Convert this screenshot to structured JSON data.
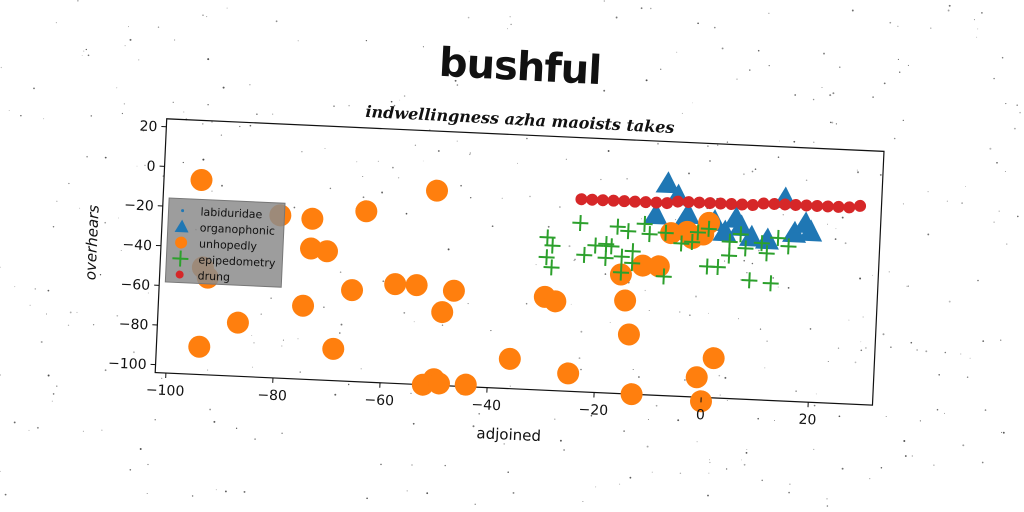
{
  "chart_data": {
    "type": "scatter",
    "title": "bushful",
    "subtitle": "indwellingness azha maoists takes",
    "xlabel": "adjoined",
    "ylabel": "overhears",
    "xlim": [
      -102,
      32
    ],
    "ylim": [
      -104,
      24
    ],
    "xticks": [
      -100,
      -80,
      -60,
      -40,
      -20,
      0,
      20
    ],
    "yticks": [
      20,
      0,
      -20,
      -40,
      -60,
      -80,
      -100
    ],
    "xtick_labels": [
      "−100",
      "−80",
      "−60",
      "−40",
      "−20",
      "0",
      "20"
    ],
    "ytick_labels": [
      "20",
      "0",
      "−20",
      "−40",
      "−60",
      "−80",
      "−100"
    ],
    "grid": false,
    "legend_position": "center-left",
    "series": [
      {
        "name": "labiduridae",
        "marker": "point",
        "color": "#1f77b4",
        "points": []
      },
      {
        "name": "organophonic",
        "marker": "triangle",
        "color": "#1f77b4",
        "points": [
          [
            -8,
            3
          ],
          [
            -6,
            -3
          ],
          [
            -10,
            -13
          ],
          [
            -5,
            -17
          ],
          [
            -4,
            -12
          ],
          [
            1,
            -15
          ],
          [
            3,
            -20
          ],
          [
            5,
            -13
          ],
          [
            6,
            -17
          ],
          [
            8,
            -22
          ],
          [
            11,
            -23
          ],
          [
            14,
            -2
          ],
          [
            16,
            -19
          ],
          [
            18,
            -14
          ],
          [
            19,
            -18
          ]
        ]
      },
      {
        "name": "unhopedly",
        "marker": "circle",
        "color": "#ff7f0e",
        "points": [
          [
            -95,
            -6
          ],
          [
            -93,
            -55
          ],
          [
            -94,
            -50
          ],
          [
            -94,
            -90
          ],
          [
            -87,
            -77
          ],
          [
            -80,
            -22
          ],
          [
            -75,
            -67
          ],
          [
            -74,
            -23
          ],
          [
            -74,
            -38
          ],
          [
            -71,
            -39
          ],
          [
            -69,
            -88
          ],
          [
            -66,
            -58
          ],
          [
            -64,
            -18
          ],
          [
            -58,
            -54
          ],
          [
            -54,
            -54
          ],
          [
            -51,
            -6
          ],
          [
            -52,
            -104
          ],
          [
            -50,
            -101
          ],
          [
            -49,
            -67
          ],
          [
            -49,
            -103
          ],
          [
            -47,
            -56
          ],
          [
            -44,
            -103
          ],
          [
            -36,
            -89
          ],
          [
            -30,
            -57
          ],
          [
            -28,
            -59
          ],
          [
            -25,
            -95
          ],
          [
            -15,
            -57
          ],
          [
            -14,
            -74
          ],
          [
            -13,
            -104
          ],
          [
            -12,
            -39
          ],
          [
            -7,
            -22
          ],
          [
            -9,
            -39
          ],
          [
            -4,
            -21
          ],
          [
            -3,
            -24
          ],
          [
            -1,
            -22
          ],
          [
            0,
            -16
          ],
          [
            -1,
            -94
          ],
          [
            2,
            -84
          ],
          [
            0,
            -106
          ],
          [
            -16,
            -44
          ]
        ]
      },
      {
        "name": "epipedometry",
        "marker": "plus",
        "color": "#2ca02c",
        "points": [
          [
            -24,
            -19
          ],
          [
            -30,
            -27
          ],
          [
            -29,
            -31
          ],
          [
            -30,
            -37
          ],
          [
            -29,
            -42
          ],
          [
            -23,
            -35
          ],
          [
            -21,
            -30
          ],
          [
            -19,
            -29
          ],
          [
            -18,
            -30
          ],
          [
            -19,
            -36
          ],
          [
            -17,
            -20
          ],
          [
            -16,
            -35
          ],
          [
            -16,
            -43
          ],
          [
            -14,
            -32
          ],
          [
            -14,
            -38
          ],
          [
            -15,
            -22
          ],
          [
            -12,
            -18
          ],
          [
            -11,
            -23
          ],
          [
            -8,
            -22
          ],
          [
            -8,
            -44
          ],
          [
            -5,
            -27
          ],
          [
            -3,
            -26
          ],
          [
            -2,
            -21
          ],
          [
            0,
            -19
          ],
          [
            0,
            -38
          ],
          [
            2,
            -38
          ],
          [
            4,
            -25
          ],
          [
            4,
            -32
          ],
          [
            6,
            -21
          ],
          [
            7,
            -28
          ],
          [
            8,
            -44
          ],
          [
            10,
            -25
          ],
          [
            11,
            -30
          ],
          [
            12,
            -45
          ],
          [
            13,
            -22
          ],
          [
            15,
            -26
          ]
        ]
      },
      {
        "name": "drung",
        "marker": "dot",
        "color": "#d62728",
        "points": [
          [
            -24,
            -7
          ],
          [
            -22,
            -7
          ],
          [
            -20,
            -7
          ],
          [
            -18,
            -7
          ],
          [
            -16,
            -7
          ],
          [
            -14,
            -7
          ],
          [
            -12,
            -7
          ],
          [
            -10,
            -7
          ],
          [
            -8,
            -7
          ],
          [
            -6,
            -6
          ],
          [
            -4,
            -6
          ],
          [
            -2,
            -6
          ],
          [
            0,
            -6
          ],
          [
            2,
            -6
          ],
          [
            4,
            -6
          ],
          [
            6,
            -6
          ],
          [
            8,
            -6
          ],
          [
            10,
            -5
          ],
          [
            12,
            -5
          ],
          [
            14,
            -5
          ],
          [
            16,
            -5
          ],
          [
            18,
            -5
          ],
          [
            20,
            -5
          ],
          [
            22,
            -5
          ],
          [
            24,
            -5
          ],
          [
            26,
            -5
          ],
          [
            28,
            -4
          ]
        ]
      }
    ]
  }
}
